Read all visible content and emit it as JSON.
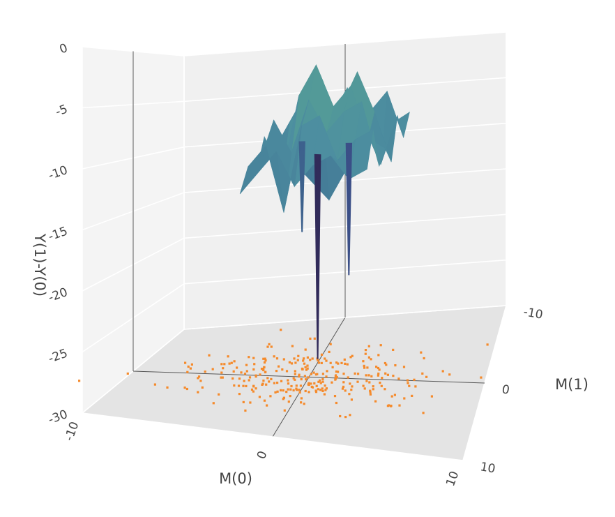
{
  "chart_data": {
    "type": "surface",
    "axes": {
      "x": {
        "title": "M(0)",
        "range": [
          -10,
          10
        ],
        "ticks": [
          "-10",
          "0",
          "10"
        ]
      },
      "y": {
        "title": "M(1)",
        "range": [
          -10,
          10
        ],
        "ticks": [
          "-10",
          "0",
          "10"
        ]
      },
      "z": {
        "title": "Y(1)-Y(0)",
        "range": [
          -30,
          0
        ],
        "ticks": [
          "0",
          "-5",
          "-10",
          "-15",
          "-20",
          "-25",
          "-30"
        ]
      }
    },
    "grid": true,
    "surface": {
      "colorscale": [
        "#2e1f4a",
        "#3b4d86",
        "#3e6f92",
        "#4d8fa0",
        "#5aa88e"
      ],
      "grid_x": [
        -3,
        -2,
        -1,
        0,
        1,
        2,
        3,
        4
      ],
      "grid_y": [
        -10,
        -8,
        -6,
        -4,
        -2,
        0,
        2,
        4
      ],
      "z": [
        [
          -13,
          -15,
          -17,
          -14,
          -11,
          -10,
          -9,
          -8
        ],
        [
          -12,
          -9,
          -6,
          -8,
          -12,
          -7,
          -5,
          -10
        ],
        [
          -9,
          -6,
          -11,
          -7,
          -4,
          -8,
          -12,
          -7
        ],
        [
          -10,
          -7,
          -5,
          -3,
          -9,
          -2,
          -6,
          -11
        ],
        [
          -8,
          -12,
          -4,
          -1,
          -5,
          -3,
          -8,
          -9
        ],
        [
          -11,
          -6,
          -9,
          -4,
          -7,
          -5,
          -4,
          -10
        ],
        [
          -10,
          -8,
          -14,
          -6,
          -5,
          -9,
          -7,
          -6
        ],
        [
          -12,
          -10,
          -8,
          -11,
          -9,
          -8,
          -10,
          -9
        ]
      ],
      "spikes": [
        {
          "x": 0.6,
          "y": 0.5,
          "z": -28
        },
        {
          "x": 1.6,
          "y": -3.5,
          "z": -22
        },
        {
          "x": -1.3,
          "y": -4.2,
          "z": -18
        }
      ]
    },
    "scatter": {
      "color": "#f58a2b",
      "center": [
        0,
        0
      ],
      "spread": [
        3.5,
        2.5
      ],
      "count": 300
    }
  }
}
